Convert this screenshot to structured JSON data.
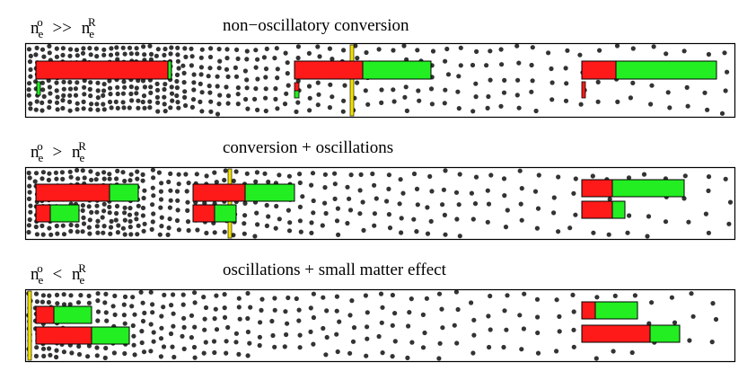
{
  "colors": {
    "red": "#ff1a1a",
    "green": "#22ee22",
    "marker": "#f2e200",
    "dots": "#333333",
    "frame": "#000000"
  },
  "panels": [
    {
      "id": "top",
      "condition": {
        "n1": "n",
        "sup1": "o",
        "sub1": "e",
        "op": ">>",
        "n2": "n",
        "sup2": "R",
        "sub2": "e"
      },
      "title": "non−oscillatory conversion",
      "density": "very-high"
    },
    {
      "id": "middle",
      "condition": {
        "n1": "n",
        "sup1": "o",
        "sub1": "e",
        "op": ">",
        "n2": "n",
        "sup2": "R",
        "sub2": "e"
      },
      "title": "conversion + oscillations",
      "density": "high"
    },
    {
      "id": "bottom",
      "condition": {
        "n1": "n",
        "sup1": "o",
        "sub1": "e",
        "op": "<",
        "n2": "n",
        "sup2": "R",
        "sub2": "e"
      },
      "title": "oscillations + small matter effect",
      "density": "low"
    }
  ]
}
